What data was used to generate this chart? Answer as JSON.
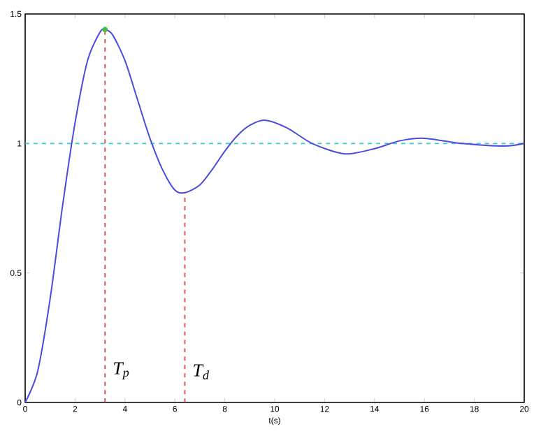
{
  "chart_data": {
    "type": "line",
    "xlabel": "t(s)",
    "xlim": [
      0,
      20
    ],
    "ylim": [
      0,
      1.5
    ],
    "xticks": [
      0,
      2,
      4,
      6,
      8,
      10,
      12,
      14,
      16,
      18,
      20
    ],
    "yticks": [
      0,
      0.5,
      1,
      1.5
    ],
    "grid": false,
    "series": [
      {
        "color": "#4a4ae0",
        "line_style": "solid",
        "marker": "none",
        "x": [
          0,
          0.5,
          1,
          1.5,
          2,
          2.5,
          3,
          3.2,
          3.5,
          4,
          4.5,
          5,
          5.5,
          6,
          6.4,
          7,
          7.5,
          8,
          8.5,
          9,
          9.6,
          10.5,
          11.5,
          12.8,
          14,
          15,
          16,
          17.5,
          19.2,
          20
        ],
        "values": [
          0,
          0.12,
          0.4,
          0.76,
          1.08,
          1.32,
          1.43,
          1.44,
          1.42,
          1.32,
          1.17,
          1.02,
          0.9,
          0.82,
          0.81,
          0.84,
          0.9,
          0.97,
          1.03,
          1.07,
          1.09,
          1.06,
          1.0,
          0.96,
          0.98,
          1.01,
          1.02,
          1.0,
          0.99,
          1.0
        ]
      },
      {
        "color": "#e03030",
        "line_style": "dashed",
        "marker": "none",
        "x": [
          3.2,
          3.2
        ],
        "values": [
          0,
          1.44
        ]
      },
      {
        "color": "#e03030",
        "line_style": "dashed",
        "marker": "none",
        "x": [
          6.4,
          6.4
        ],
        "values": [
          0,
          0.81
        ]
      },
      {
        "type": "scatter",
        "color": "#44bb44",
        "marker": "circle",
        "x": [
          3.2
        ],
        "values": [
          1.44
        ]
      }
    ],
    "ref_lines": [
      {
        "axis": "y",
        "value": 1,
        "color": "#33cccc",
        "line_style": "dashed"
      }
    ],
    "annotations": [
      {
        "text": "T$_{p}$",
        "x": 3.2,
        "y": 0.07
      },
      {
        "text": "T$_{d}$",
        "x": 6.4,
        "y": 0.07
      }
    ]
  }
}
